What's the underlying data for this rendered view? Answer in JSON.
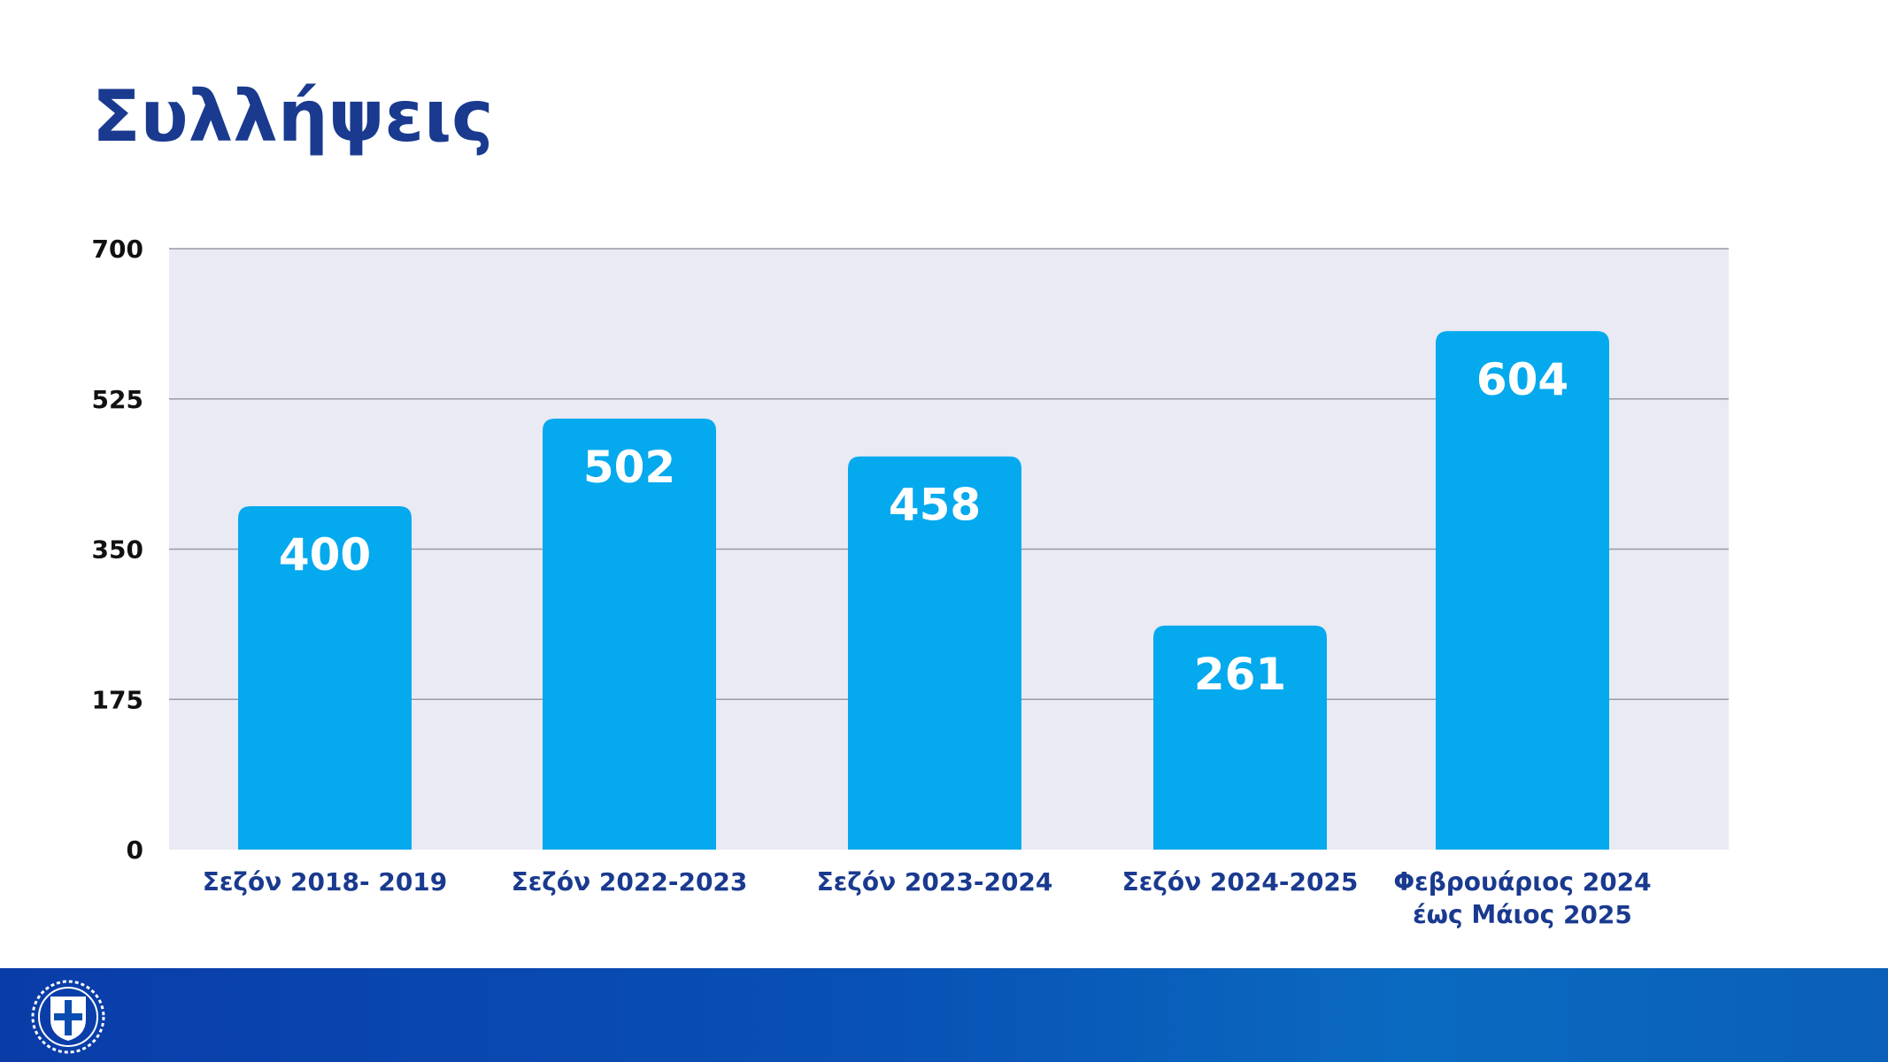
{
  "title": "Συλλήψεις",
  "colors": {
    "title": "#1a3a8f",
    "bar": "#05a9ee",
    "plot_background": "#e9eaf4",
    "grid": "#9a9aa8",
    "footer": "#0a4db0"
  },
  "footer": {
    "emblem_icon": "greek-coat-of-arms-icon"
  },
  "chart_data": {
    "type": "bar",
    "categories": [
      [
        "Σεζόν 2018- 2019"
      ],
      [
        "Σεζόν 2022-2023"
      ],
      [
        "Σεζόν 2023-2024"
      ],
      [
        "Σεζόν 2024-2025"
      ],
      [
        "Φεβρουάριος 2024",
        "έως Μάιος 2025"
      ]
    ],
    "values": [
      400,
      502,
      458,
      261,
      604
    ],
    "title": "Συλλήψεις",
    "xlabel": "",
    "ylabel": "",
    "ylim": [
      0,
      700
    ],
    "yticks": [
      0,
      175,
      350,
      525,
      700
    ],
    "grid": true,
    "data_labels": true,
    "legend": "none"
  }
}
